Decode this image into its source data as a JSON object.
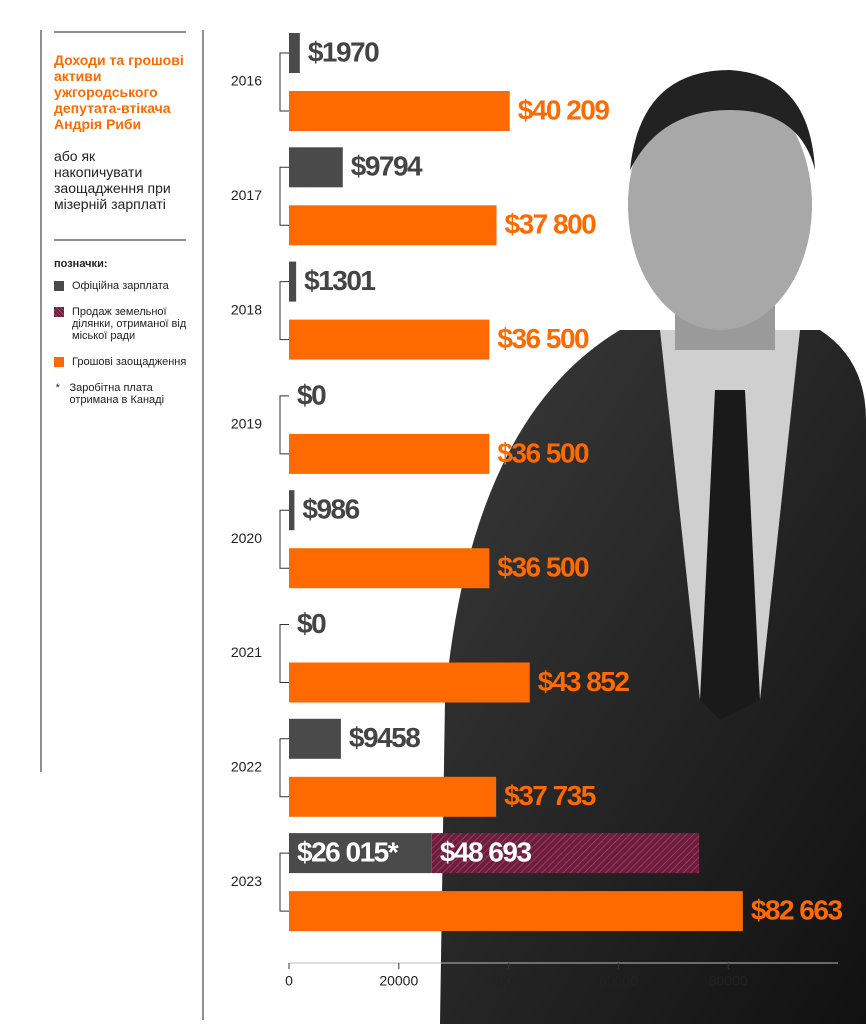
{
  "chart_data": {
    "type": "grouped-bar",
    "title": "Доходи та грошові активи ужгородського депутата-втікача Андрія Риби",
    "subtitle": "або як накопичувати заощадження при мізерній зарплаті",
    "legend_title": "позначки:",
    "footnote": {
      "marker": "*",
      "text": "Заробітна плата отримана в Канаді"
    },
    "categories": [
      "2016",
      "2017",
      "2018",
      "2019",
      "2020",
      "2021",
      "2022",
      "2023"
    ],
    "series": [
      {
        "name": "Офіційна зарплата",
        "color": "#4a4a4a",
        "row": 1,
        "values": [
          1970,
          9794,
          1301,
          0,
          986,
          0,
          9458,
          26015
        ],
        "value_labels": [
          "$1970",
          "$9794",
          "$1301",
          "$0",
          "$986",
          "$0",
          "$9458",
          "$26 015*"
        ]
      },
      {
        "name": "Продаж земельної ділянки, отриманої від міської ради",
        "color": "#6b1f3a",
        "row": 1,
        "hatch": true,
        "values": [
          null,
          null,
          null,
          null,
          null,
          null,
          null,
          48693
        ],
        "value_labels": [
          null,
          null,
          null,
          null,
          null,
          null,
          null,
          "$48 693"
        ]
      },
      {
        "name": "Грошові заощадження",
        "color": "#ff6a00",
        "row": 2,
        "values": [
          40209,
          37800,
          36500,
          36500,
          36500,
          43852,
          37735,
          82663
        ],
        "value_labels": [
          "$40 209",
          "$37 800",
          "$36 500",
          "$36 500",
          "$36 500",
          "$43 852",
          "$37 735",
          "$82 663"
        ]
      }
    ],
    "xlim": [
      0,
      100000
    ],
    "xticks": [
      0,
      20000,
      40000,
      60000,
      80000
    ]
  }
}
